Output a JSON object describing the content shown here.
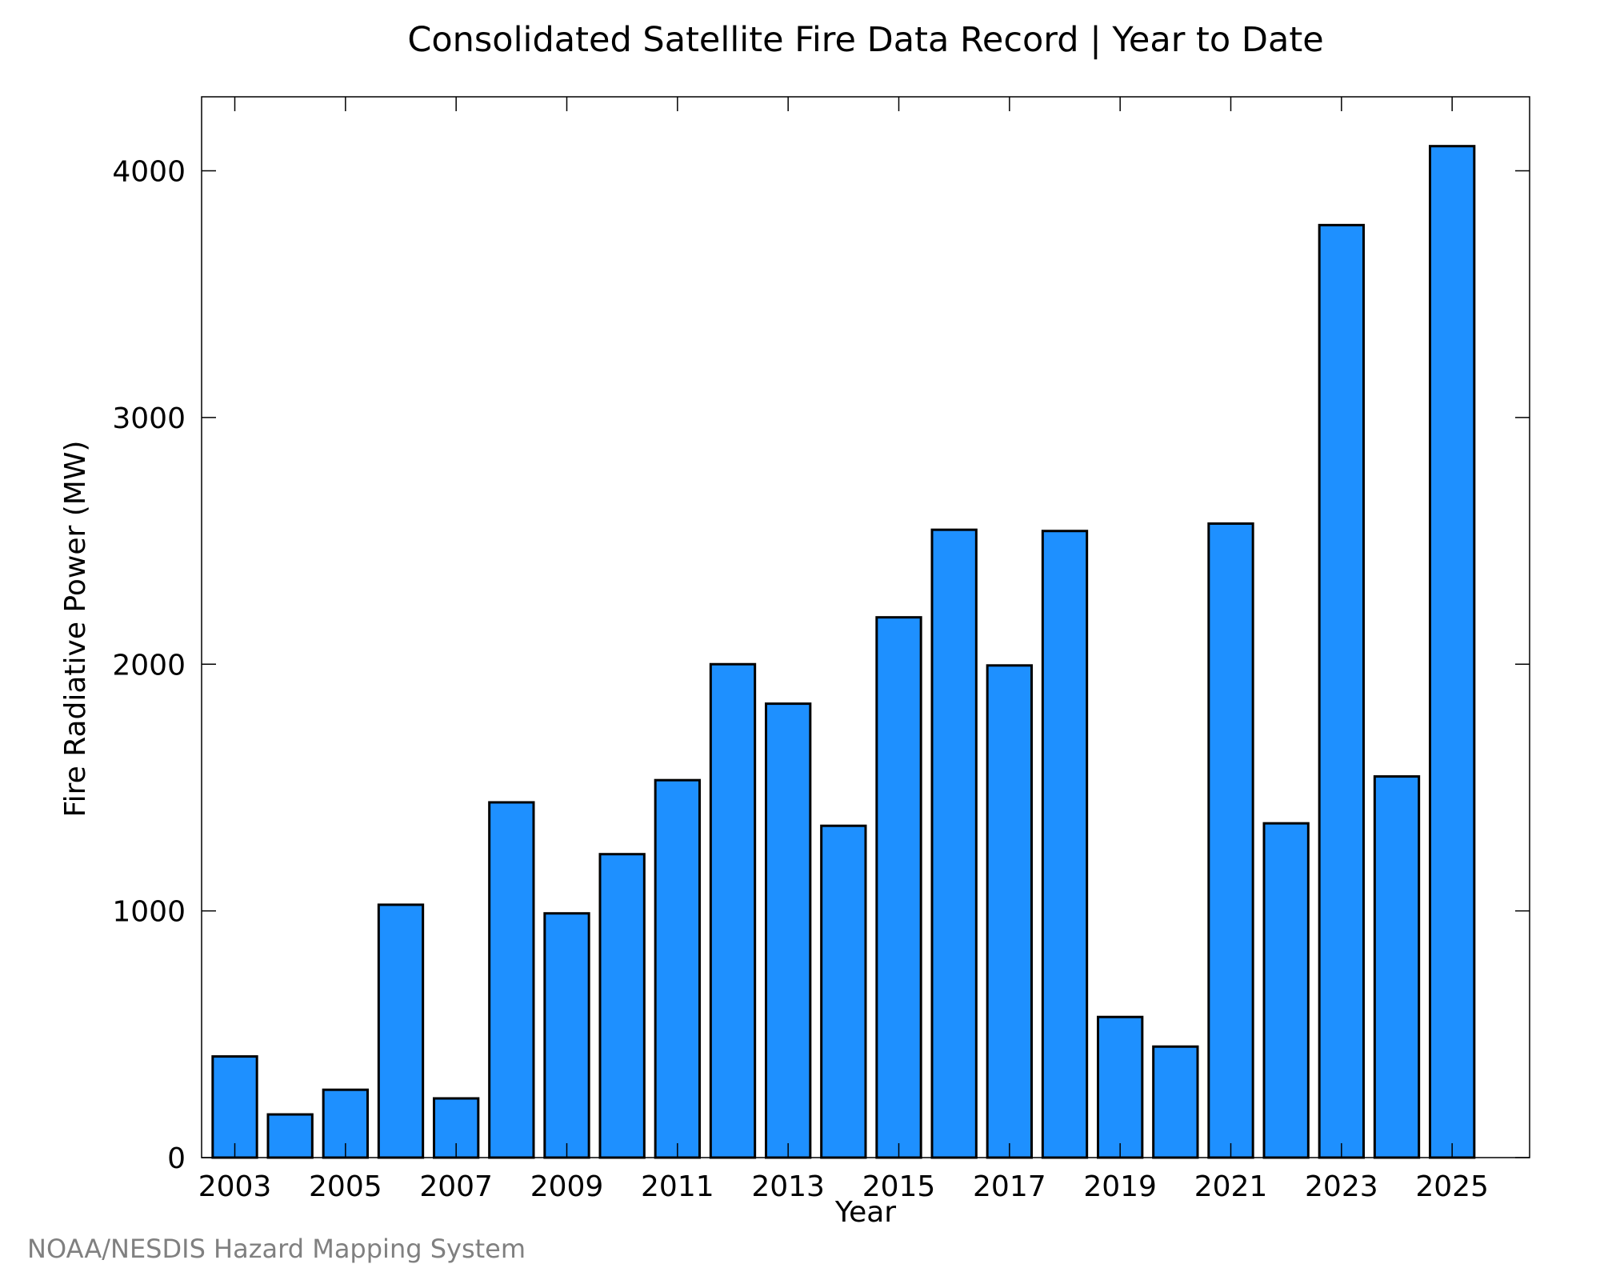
{
  "chart_data": {
    "type": "bar",
    "title": "Consolidated Satellite Fire Data Record | Year to Date",
    "xlabel": "Year",
    "ylabel": "Fire Radiative Power (MW)",
    "categories": [
      "2003",
      "2004",
      "2005",
      "2006",
      "2007",
      "2008",
      "2009",
      "2010",
      "2011",
      "2012",
      "2013",
      "2014",
      "2015",
      "2016",
      "2017",
      "2018",
      "2019",
      "2020",
      "2021",
      "2022",
      "2023",
      "2024",
      "2025"
    ],
    "x_tick_labels": [
      "2003",
      "2005",
      "2007",
      "2009",
      "2011",
      "2013",
      "2015",
      "2017",
      "2019",
      "2021",
      "2023",
      "2025"
    ],
    "values": [
      410,
      175,
      275,
      1025,
      240,
      1440,
      990,
      1230,
      1530,
      2000,
      1840,
      1345,
      2190,
      2545,
      1995,
      2540,
      570,
      450,
      2570,
      1355,
      3780,
      1545,
      4100
    ],
    "ylim": [
      0,
      4300
    ],
    "y_ticks": [
      0,
      1000,
      2000,
      3000,
      4000
    ],
    "xlim": [
      2002.4,
      2026.4
    ],
    "bar_color": "#1E90FF",
    "grid": false,
    "legend": "none"
  },
  "footer": {
    "credit": "NOAA/NESDIS Hazard Mapping System"
  }
}
